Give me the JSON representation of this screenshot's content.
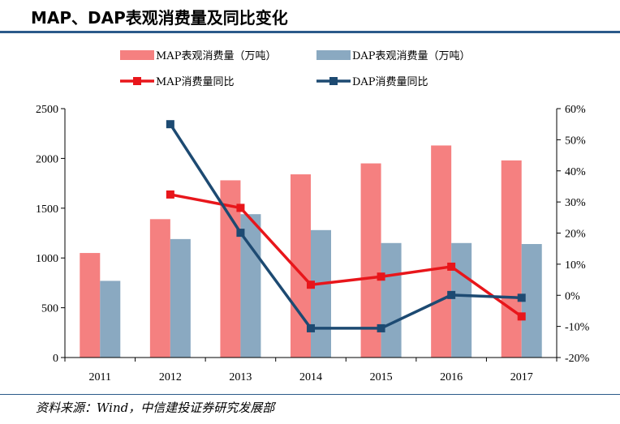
{
  "header": {
    "title": "MAP、DAP表观消费量及同比变化"
  },
  "footer": {
    "source": "资料来源：Wind，中信建投证券研究发展部"
  },
  "colors": {
    "map_bar": "#f58080",
    "dap_bar": "#8aa9c1",
    "map_line": "#e8161b",
    "dap_line": "#1d4a72",
    "title_rule": "#2b5a8a",
    "axis": "#000000"
  },
  "chart_data": {
    "type": "bar",
    "categories": [
      "2011",
      "2012",
      "2013",
      "2014",
      "2015",
      "2016",
      "2017"
    ],
    "series": [
      {
        "name": "MAP表观消费量（万吨）",
        "type": "bar",
        "axis": "left",
        "values": [
          1050,
          1390,
          1780,
          1840,
          1950,
          2130,
          1980
        ]
      },
      {
        "name": "DAP表观消费量（万吨）",
        "type": "bar",
        "axis": "left",
        "values": [
          770,
          1190,
          1440,
          1280,
          1150,
          1150,
          1140
        ]
      },
      {
        "name": "MAP消费量同比",
        "type": "line",
        "axis": "right",
        "values": [
          null,
          32.4,
          28.1,
          3.4,
          6.0,
          9.2,
          -6.8
        ]
      },
      {
        "name": "DAP消费量同比",
        "type": "line",
        "axis": "right",
        "values": [
          null,
          55.0,
          20.1,
          -10.6,
          -10.6,
          0.1,
          -0.8
        ]
      }
    ],
    "left_axis": {
      "ylim": [
        0,
        2500
      ],
      "ticks": [
        "0",
        "500",
        "1000",
        "1500",
        "2000",
        "2500"
      ]
    },
    "right_axis": {
      "ylim": [
        -20,
        60
      ],
      "ticks": [
        "-20%",
        "-10%",
        "0%",
        "10%",
        "20%",
        "30%",
        "40%",
        "50%",
        "60%"
      ]
    },
    "legend": {
      "placement": "top"
    },
    "grid": false
  }
}
